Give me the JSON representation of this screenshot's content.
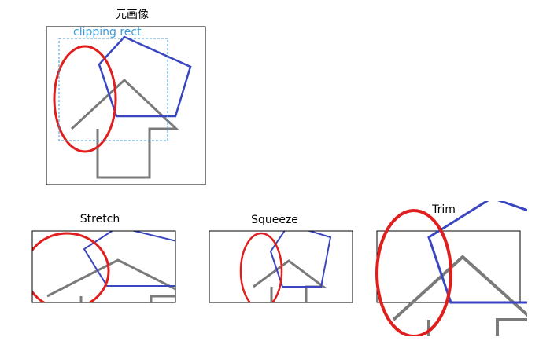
{
  "panels": {
    "original": {
      "title": "元画像",
      "clip_label": "clipping rect"
    },
    "stretch": {
      "title": "Stretch"
    },
    "squeeze": {
      "title": "Squeeze"
    },
    "trim": {
      "title": "Trim"
    }
  },
  "colors": {
    "ellipse": "#e01e1e",
    "pentagon": "#3a46c0",
    "arrow": "#7a7a7a",
    "clip_rect": "#3d9bd8",
    "frame": "#000000"
  }
}
